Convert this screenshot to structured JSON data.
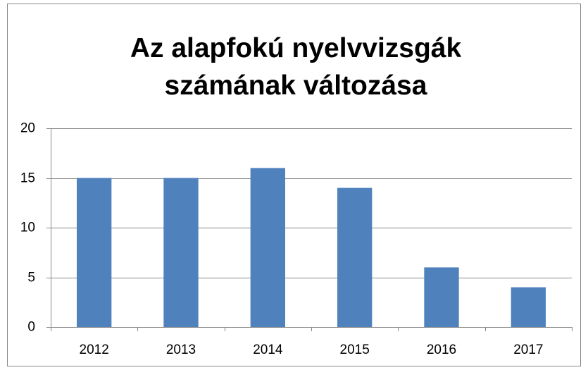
{
  "chart_data": {
    "type": "bar",
    "title": "Az alapfokú nyelvvizsgák számának változása",
    "categories": [
      "2012",
      "2013",
      "2014",
      "2015",
      "2016",
      "2017"
    ],
    "values": [
      15,
      15,
      16,
      14,
      6,
      4
    ],
    "color": "#4f81bd",
    "ylim": [
      0,
      20
    ],
    "yticks": [
      0,
      5,
      10,
      15,
      20
    ],
    "grid": true
  }
}
